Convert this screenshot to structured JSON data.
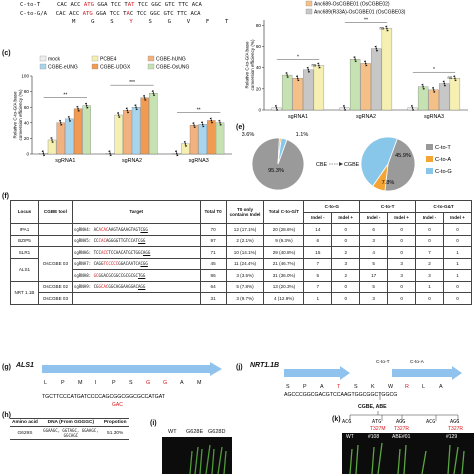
{
  "panel_letters": {
    "c": "(c)",
    "e": "(e)",
    "f": "(f)",
    "g": "(g)",
    "h": "(h)",
    "i": "(i)",
    "j": "(j)",
    "k": "(k)"
  },
  "top_seq": {
    "row1_label": "C-to-T",
    "row1_seq": [
      "CAC ACC ",
      "ATG",
      " GGA TCC T",
      "A",
      "T",
      " TCC GGC GTC TTC ACA"
    ],
    "row2_label": "C-to-G/A",
    "row2_seq": [
      "CAC ACC ",
      "ATG",
      " GGA TCC T",
      "A",
      "C TCC GGC GTC TTC ACA"
    ],
    "aa_row": [
      "M",
      "G",
      "S",
      "Y",
      "S",
      "G",
      "V",
      "F",
      "T"
    ]
  },
  "colors": {
    "mock": "#ededed",
    "pcbe4": "#f5efb1",
    "cgbe_hung": "#f2b27f",
    "cgbe_eung": "#a8d5ec",
    "cgbe_udgx": "#f09a52",
    "cgbe_osung": "#c6e2b2",
    "anc689_cgbe02": "#f4c088",
    "anc689_r33a": "#c7c7c7",
    "pie_ct": "#9a9a9a",
    "pie_ca": "#f4a533",
    "pie_cg": "#88c7ea",
    "arrow_blue": "#8fc3ee",
    "accent_red": "#d4161c"
  },
  "chart_data": [
    {
      "id": "c",
      "type": "bar",
      "ylabel": "Relative C-to-G/A base conversion efficiency (%)",
      "yticks": [
        0,
        20,
        40,
        60,
        80,
        100
      ],
      "ylim": [
        0,
        100
      ],
      "categories": [
        "sgRNA1",
        "sgRNA2",
        "sgRNA3"
      ],
      "legend": [
        "mock",
        "PCBE4",
        "CGBE-hUNG",
        "CGBE-eUNG",
        "CGBE-UDGX",
        "CGBE-OsUNG"
      ],
      "series": [
        {
          "name": "mock",
          "values": [
            1,
            1,
            1
          ]
        },
        {
          "name": "PCBE4",
          "values": [
            18,
            50,
            13
          ]
        },
        {
          "name": "CGBE-hUNG",
          "values": [
            40,
            56,
            37
          ]
        },
        {
          "name": "CGBE-eUNG",
          "values": [
            45,
            60,
            38
          ]
        },
        {
          "name": "CGBE-UDGX",
          "values": [
            58,
            72,
            43
          ]
        },
        {
          "name": "CGBE-OsUNG",
          "values": [
            62,
            78,
            40
          ]
        }
      ],
      "significance": [
        "**",
        "***",
        "**"
      ]
    },
    {
      "id": "d",
      "type": "bar",
      "ylabel": "Relative C-to-G/A base conversion efficiency (%)",
      "yticks": [
        0,
        20,
        40,
        60,
        80
      ],
      "ylim": [
        0,
        85
      ],
      "categories": [
        "sgRNA1",
        "sgRNA2",
        "sgRNA3"
      ],
      "legend": [
        "Anc689-OsCGBE01 (OsCGBE02)",
        "Anc689(R33A)-OsCGBE01 (OsCGBE03)"
      ],
      "series": [
        {
          "name": "mock",
          "values": [
            2,
            2,
            2
          ]
        },
        {
          "name": "CGBE-OsUNG",
          "values": [
            33,
            48,
            22
          ]
        },
        {
          "name": "Anc689-OsCGBE01 (OsCGBE02)",
          "values": [
            30,
            44,
            19
          ]
        },
        {
          "name": "Anc689(R33A)-OsCGBE01 (OsCGBE03)",
          "values": [
            38,
            58,
            25
          ]
        },
        {
          "name": "PCBE4",
          "values": [
            42,
            77,
            30
          ]
        }
      ],
      "significance": [
        "*",
        "**",
        "*"
      ],
      "ns_labels": [
        "ns",
        "ns",
        "ns"
      ]
    },
    {
      "id": "e1",
      "type": "pie",
      "slices": [
        {
          "label": "C-to-T",
          "value": 95.3,
          "text": "95.3%"
        },
        {
          "label": "C-to-A",
          "value": 1.1,
          "text": "1.1%"
        },
        {
          "label": "C-to-G",
          "value": 3.6,
          "text": "3.6%"
        }
      ]
    },
    {
      "id": "e2",
      "type": "pie",
      "slices": [
        {
          "label": "C-to-T",
          "value": 46.2,
          "text": "46.2%"
        },
        {
          "label": "C-to-A",
          "value": 7.8,
          "text": "7.8%"
        },
        {
          "label": "C-to-G",
          "value": 45.9,
          "text": "45.9%"
        }
      ],
      "legend": [
        "C-to-T",
        "C-to-A",
        "C-to-G"
      ],
      "arrow_from": "CBE",
      "arrow_to": "CGBE"
    }
  ],
  "table_f": {
    "headers": [
      "Locus",
      "CGBE tool",
      "Target",
      "Total T0",
      "T0 only contains Indel",
      "Total C-to-G/T",
      "C-to-G",
      "C-to-T",
      "C-to-G&T"
    ],
    "subheaders": [
      "Indel -",
      "Indel +",
      "Indel -",
      "Indel +",
      "Indel -",
      "Indel +"
    ],
    "rows": [
      {
        "locus": "IPA1",
        "tool": "",
        "target": [
          "sgRNA4: AC",
          "ACAC",
          "AAGTAGAAGTAGT",
          "CGG",
          ""
        ],
        "total": "70",
        "indel_only": "12 (17.1%)",
        "ctg": "20 (28.6%)",
        "v": [
          "14",
          "0",
          "6",
          "0",
          "0",
          "0"
        ]
      },
      {
        "locus": "BZIP5",
        "tool": "",
        "target": [
          "sgRNA5: CC",
          "CAC",
          "AGGGGTTGTCCAT",
          "CGG",
          ""
        ],
        "total": "97",
        "indel_only": "2 (2.1%)",
        "ctg": "9 (9.3%)",
        "v": [
          "6",
          "0",
          "3",
          "0",
          "0",
          "0"
        ]
      },
      {
        "locus": "SLR1",
        "tool": "OsCGBE 03",
        "target": [
          "sgRNA6: TCC",
          "ACC",
          "TCCAACATGCTGGC",
          "AGG",
          ""
        ],
        "total": "71",
        "indel_only": "10 (14.1%)",
        "ctg": "29 (40.8%)",
        "v": [
          "15",
          "2",
          "4",
          "0",
          "7",
          "1"
        ]
      },
      {
        "locus": "ALS1",
        "tool": "",
        "target": [
          "sgRNA7: CAGG",
          "TCCCCC",
          "GGACAATCA",
          "CGG",
          ""
        ],
        "total": "45",
        "indel_only": "11 (24.4%)",
        "ctg": "21 (46.7%)",
        "v": [
          "7",
          "3",
          "5",
          "3",
          "2",
          "1"
        ]
      },
      {
        "locus": "",
        "tool": "",
        "target": [
          "sgRNA8: ",
          "GC",
          "GGACGCGGCCGCGCGC",
          "TGG",
          ""
        ],
        "total": "86",
        "indel_only": "3 (3.5%)",
        "ctg": "31 (36.0%)",
        "v": [
          "5",
          "2",
          "17",
          "3",
          "3",
          "1"
        ]
      },
      {
        "locus": "NRT 1.1B",
        "tool": "OsCGBE 02",
        "target": [
          "sgRNA9: CG",
          "GCAC",
          "GGCAGGAAGGAC",
          "AGG",
          ""
        ],
        "total": "64",
        "indel_only": "5 (7.8%)",
        "ctg": "13 (20.3%)",
        "v": [
          "7",
          "0",
          "5",
          "0",
          "1",
          "0"
        ]
      },
      {
        "locus": "",
        "tool": "OsCGBE 03",
        "target": [
          "",
          "",
          "",
          "",
          ""
        ],
        "total": "31",
        "indel_only": "3 (9.7%)",
        "ctg": "4 (12.9%)",
        "v": [
          "1",
          "0",
          "3",
          "0",
          "0",
          "0"
        ]
      }
    ]
  },
  "panel_g": {
    "gene": "ALS1",
    "aa": [
      "L",
      "P",
      "M",
      "I",
      "P",
      "S",
      "G",
      "G",
      "A",
      "M"
    ],
    "dna": "TGCTTCCCATGATCCCCAGCGGCGGCGCCATGAT",
    "sub_mut": "GAC"
  },
  "panel_h": {
    "headers": [
      "Amino acid",
      "DNA (From GGGGC)",
      "Propotion"
    ],
    "row": [
      "G629S",
      "GGAAGC, GGTAGC, GGAAGC, GGCAGC",
      "51.30%"
    ]
  },
  "panel_i": {
    "labels": [
      "WT",
      "G628E",
      "G628D"
    ]
  },
  "panel_j": {
    "gene": "NRT1.1B",
    "aa": [
      "S",
      "P",
      "A",
      "T",
      "S",
      "K",
      "W",
      "R",
      "L",
      "A"
    ],
    "dna": "AGCCCGGCGACGTCCAAGTGGCGGCTGGCG",
    "top_labels": [
      "C-to-T",
      "C-to-A"
    ]
  },
  "panel_k": {
    "tools": "CGBE, ABE",
    "codons": [
      "ACG",
      "ATG",
      "AGG",
      "ACG",
      "AGG"
    ],
    "muts": [
      "T327M",
      "T327R",
      "T327R"
    ],
    "photo_labels": [
      "WT",
      "#108",
      "ABE#01",
      "#129"
    ]
  }
}
